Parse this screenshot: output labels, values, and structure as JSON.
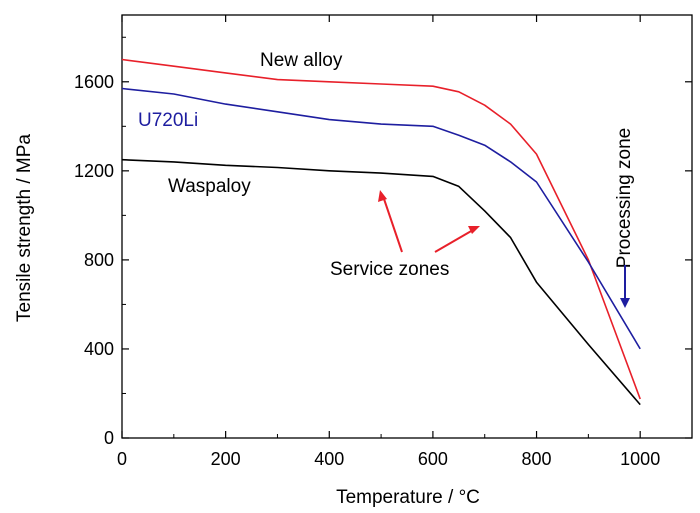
{
  "chart_data": {
    "type": "line",
    "xlabel": "Temperature / °C",
    "ylabel": "Tensile strength / MPa",
    "xlim": [
      0,
      1100
    ],
    "ylim": [
      0,
      1900
    ],
    "x_ticks": [
      0,
      200,
      400,
      600,
      800,
      1000
    ],
    "y_ticks": [
      0,
      400,
      800,
      1200,
      1600
    ],
    "x_tick_labels": [
      "0",
      "200",
      "400",
      "600",
      "800",
      "1000"
    ],
    "y_tick_labels": [
      "0",
      "400",
      "800",
      "1200",
      "1600"
    ],
    "grid": false,
    "series": [
      {
        "name": "New alloy",
        "color": "#e8202a",
        "x": [
          0,
          100,
          200,
          300,
          400,
          500,
          600,
          650,
          700,
          750,
          800,
          900,
          1000
        ],
        "y": [
          1700,
          1670,
          1640,
          1610,
          1600,
          1590,
          1580,
          1555,
          1495,
          1410,
          1275,
          800,
          175
        ]
      },
      {
        "name": "U720Li",
        "color": "#1e1ea0",
        "x": [
          0,
          100,
          200,
          300,
          400,
          500,
          600,
          650,
          700,
          750,
          800,
          900,
          1000
        ],
        "y": [
          1570,
          1545,
          1500,
          1465,
          1430,
          1410,
          1400,
          1360,
          1315,
          1240,
          1150,
          790,
          400
        ]
      },
      {
        "name": "Waspaloy",
        "color": "#000000",
        "x": [
          0,
          100,
          200,
          300,
          400,
          500,
          600,
          650,
          700,
          750,
          800,
          900,
          1000
        ],
        "y": [
          1250,
          1240,
          1225,
          1215,
          1200,
          1190,
          1175,
          1130,
          1020,
          900,
          700,
          420,
          150
        ]
      }
    ],
    "annotations": {
      "service_zones": "Service zones",
      "processing_zone": "Processing zone"
    }
  }
}
